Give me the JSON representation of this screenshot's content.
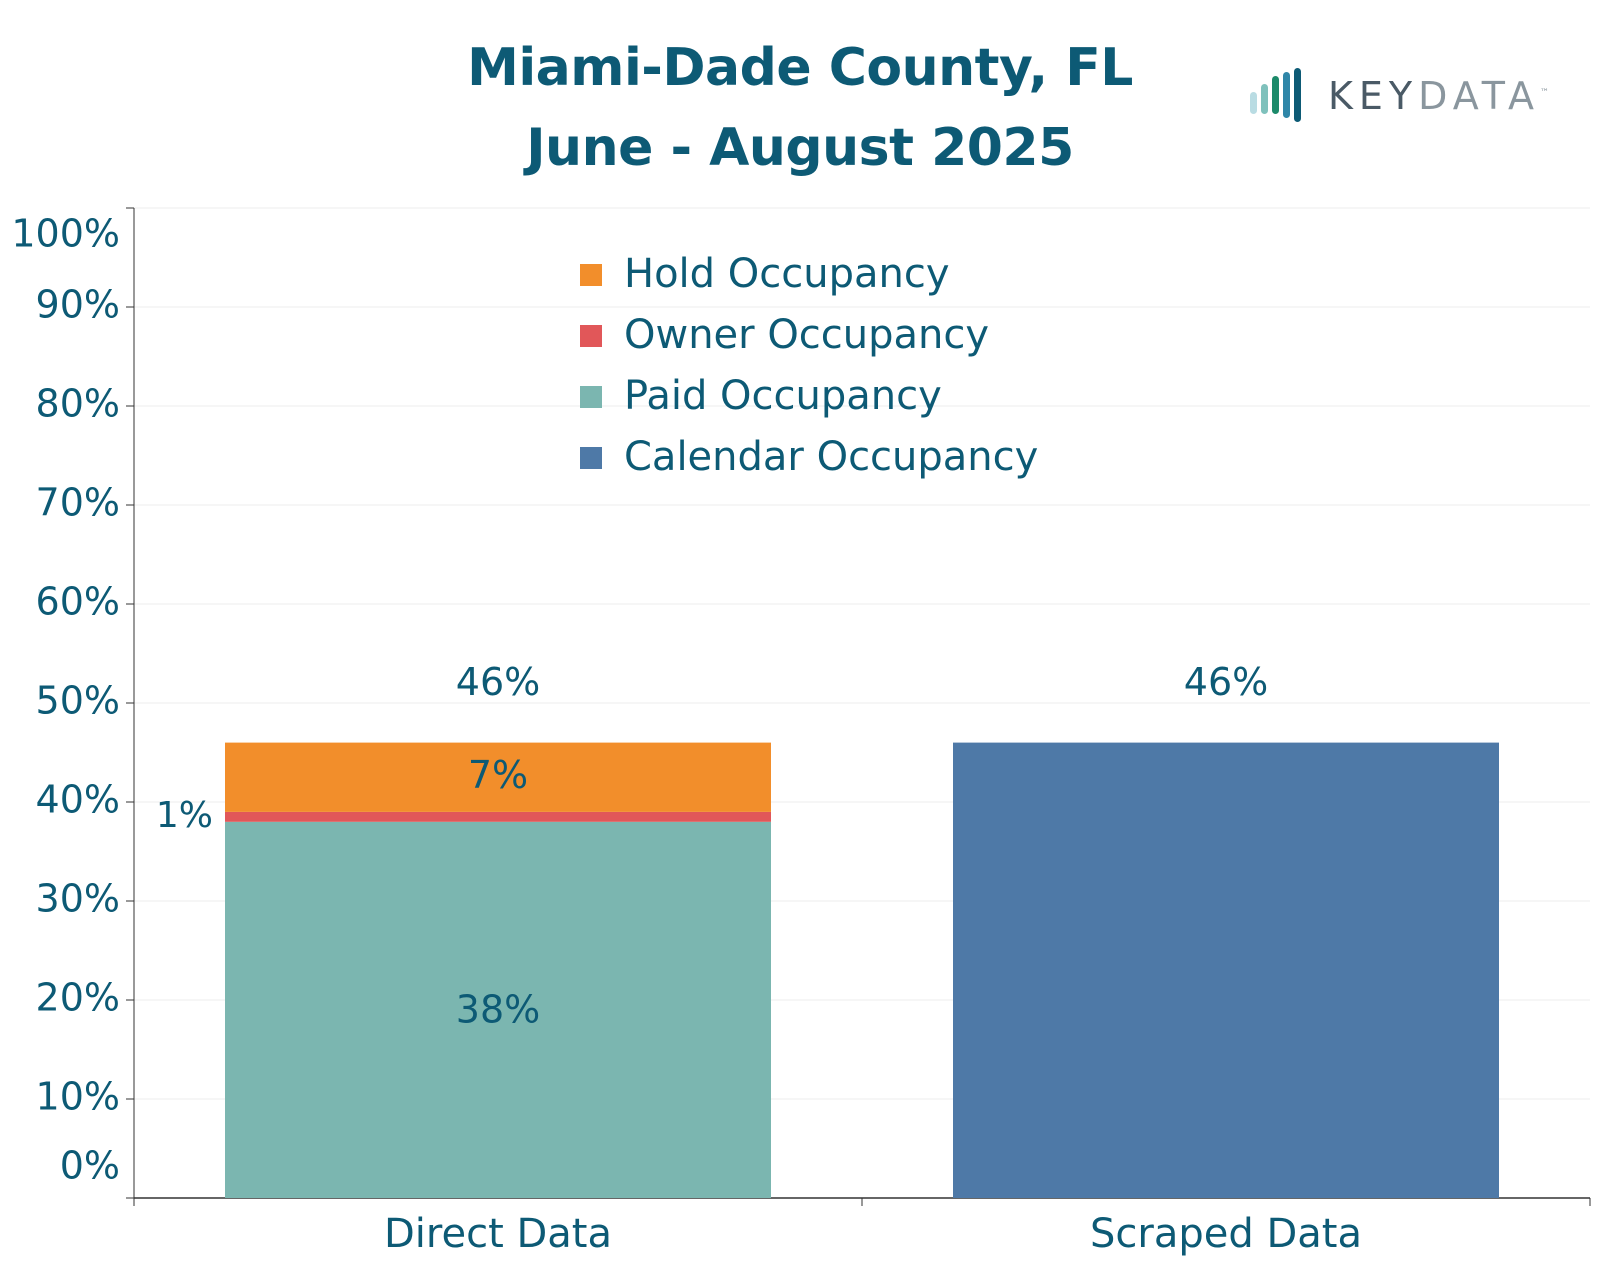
{
  "header": {
    "title_line1": "Miami-Dade County, FL",
    "title_line2": "June - August 2025"
  },
  "logo": {
    "text_dark": "KEY",
    "text_light": "DATA",
    "trademark": "™"
  },
  "colors": {
    "text": "#0d5a75",
    "hold": "#f28e2b",
    "owner": "#e15759",
    "paid": "#7bb6b0",
    "calendar": "#4e79a7",
    "grid": "#ececec",
    "axis": "#333333"
  },
  "chart_data": {
    "type": "bar",
    "stacked": true,
    "title": "Miami-Dade County, FL June - August 2025",
    "categories": [
      "Direct Data",
      "Scraped Data"
    ],
    "series": [
      {
        "name": "Paid Occupancy",
        "color": "#7bb6b0",
        "values": [
          38,
          0
        ],
        "labels": [
          "38%",
          ""
        ]
      },
      {
        "name": "Owner Occupancy",
        "color": "#e15759",
        "values": [
          1,
          0
        ],
        "labels": [
          "1%",
          ""
        ]
      },
      {
        "name": "Hold Occupancy",
        "color": "#f28e2b",
        "values": [
          7,
          0
        ],
        "labels": [
          "7%",
          ""
        ]
      },
      {
        "name": "Calendar Occupancy",
        "color": "#4e79a7",
        "values": [
          0,
          46
        ],
        "labels": [
          "",
          ""
        ]
      }
    ],
    "totals": [
      "46%",
      "46%"
    ],
    "legend": [
      "Hold Occupancy",
      "Owner Occupancy",
      "Paid Occupancy",
      "Calendar Occupancy"
    ],
    "legend_colors": [
      "#f28e2b",
      "#e15759",
      "#7bb6b0",
      "#4e79a7"
    ],
    "legend_position": "top-center",
    "yticks": [
      "0%",
      "10%",
      "20%",
      "30%",
      "40%",
      "50%",
      "60%",
      "70%",
      "80%",
      "90%",
      "100%"
    ],
    "ylim": [
      0,
      100
    ],
    "xlabel": "",
    "ylabel": "",
    "grid": true
  }
}
